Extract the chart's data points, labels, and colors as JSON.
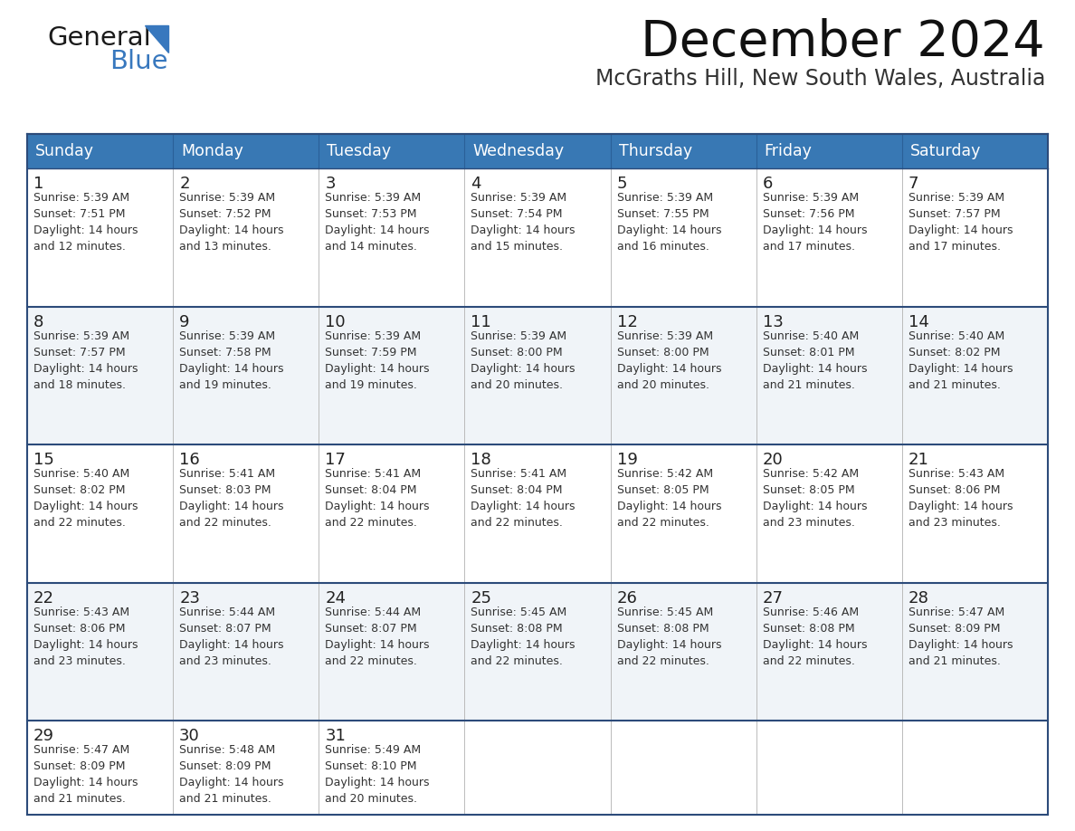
{
  "title": "December 2024",
  "subtitle": "McGraths Hill, New South Wales, Australia",
  "header_color": "#3878B4",
  "header_text_color": "#FFFFFF",
  "cell_bg_even": "#FFFFFF",
  "cell_bg_odd": "#F0F4F8",
  "border_color": "#2C4B7A",
  "row_divider_color": "#2C4B7A",
  "day_headers": [
    "Sunday",
    "Monday",
    "Tuesday",
    "Wednesday",
    "Thursday",
    "Friday",
    "Saturday"
  ],
  "calendar_data": [
    [
      {
        "day": "1",
        "info": "Sunrise: 5:39 AM\nSunset: 7:51 PM\nDaylight: 14 hours\nand 12 minutes."
      },
      {
        "day": "2",
        "info": "Sunrise: 5:39 AM\nSunset: 7:52 PM\nDaylight: 14 hours\nand 13 minutes."
      },
      {
        "day": "3",
        "info": "Sunrise: 5:39 AM\nSunset: 7:53 PM\nDaylight: 14 hours\nand 14 minutes."
      },
      {
        "day": "4",
        "info": "Sunrise: 5:39 AM\nSunset: 7:54 PM\nDaylight: 14 hours\nand 15 minutes."
      },
      {
        "day": "5",
        "info": "Sunrise: 5:39 AM\nSunset: 7:55 PM\nDaylight: 14 hours\nand 16 minutes."
      },
      {
        "day": "6",
        "info": "Sunrise: 5:39 AM\nSunset: 7:56 PM\nDaylight: 14 hours\nand 17 minutes."
      },
      {
        "day": "7",
        "info": "Sunrise: 5:39 AM\nSunset: 7:57 PM\nDaylight: 14 hours\nand 17 minutes."
      }
    ],
    [
      {
        "day": "8",
        "info": "Sunrise: 5:39 AM\nSunset: 7:57 PM\nDaylight: 14 hours\nand 18 minutes."
      },
      {
        "day": "9",
        "info": "Sunrise: 5:39 AM\nSunset: 7:58 PM\nDaylight: 14 hours\nand 19 minutes."
      },
      {
        "day": "10",
        "info": "Sunrise: 5:39 AM\nSunset: 7:59 PM\nDaylight: 14 hours\nand 19 minutes."
      },
      {
        "day": "11",
        "info": "Sunrise: 5:39 AM\nSunset: 8:00 PM\nDaylight: 14 hours\nand 20 minutes."
      },
      {
        "day": "12",
        "info": "Sunrise: 5:39 AM\nSunset: 8:00 PM\nDaylight: 14 hours\nand 20 minutes."
      },
      {
        "day": "13",
        "info": "Sunrise: 5:40 AM\nSunset: 8:01 PM\nDaylight: 14 hours\nand 21 minutes."
      },
      {
        "day": "14",
        "info": "Sunrise: 5:40 AM\nSunset: 8:02 PM\nDaylight: 14 hours\nand 21 minutes."
      }
    ],
    [
      {
        "day": "15",
        "info": "Sunrise: 5:40 AM\nSunset: 8:02 PM\nDaylight: 14 hours\nand 22 minutes."
      },
      {
        "day": "16",
        "info": "Sunrise: 5:41 AM\nSunset: 8:03 PM\nDaylight: 14 hours\nand 22 minutes."
      },
      {
        "day": "17",
        "info": "Sunrise: 5:41 AM\nSunset: 8:04 PM\nDaylight: 14 hours\nand 22 minutes."
      },
      {
        "day": "18",
        "info": "Sunrise: 5:41 AM\nSunset: 8:04 PM\nDaylight: 14 hours\nand 22 minutes."
      },
      {
        "day": "19",
        "info": "Sunrise: 5:42 AM\nSunset: 8:05 PM\nDaylight: 14 hours\nand 22 minutes."
      },
      {
        "day": "20",
        "info": "Sunrise: 5:42 AM\nSunset: 8:05 PM\nDaylight: 14 hours\nand 23 minutes."
      },
      {
        "day": "21",
        "info": "Sunrise: 5:43 AM\nSunset: 8:06 PM\nDaylight: 14 hours\nand 23 minutes."
      }
    ],
    [
      {
        "day": "22",
        "info": "Sunrise: 5:43 AM\nSunset: 8:06 PM\nDaylight: 14 hours\nand 23 minutes."
      },
      {
        "day": "23",
        "info": "Sunrise: 5:44 AM\nSunset: 8:07 PM\nDaylight: 14 hours\nand 23 minutes."
      },
      {
        "day": "24",
        "info": "Sunrise: 5:44 AM\nSunset: 8:07 PM\nDaylight: 14 hours\nand 22 minutes."
      },
      {
        "day": "25",
        "info": "Sunrise: 5:45 AM\nSunset: 8:08 PM\nDaylight: 14 hours\nand 22 minutes."
      },
      {
        "day": "26",
        "info": "Sunrise: 5:45 AM\nSunset: 8:08 PM\nDaylight: 14 hours\nand 22 minutes."
      },
      {
        "day": "27",
        "info": "Sunrise: 5:46 AM\nSunset: 8:08 PM\nDaylight: 14 hours\nand 22 minutes."
      },
      {
        "day": "28",
        "info": "Sunrise: 5:47 AM\nSunset: 8:09 PM\nDaylight: 14 hours\nand 21 minutes."
      }
    ],
    [
      {
        "day": "29",
        "info": "Sunrise: 5:47 AM\nSunset: 8:09 PM\nDaylight: 14 hours\nand 21 minutes."
      },
      {
        "day": "30",
        "info": "Sunrise: 5:48 AM\nSunset: 8:09 PM\nDaylight: 14 hours\nand 21 minutes."
      },
      {
        "day": "31",
        "info": "Sunrise: 5:49 AM\nSunset: 8:10 PM\nDaylight: 14 hours\nand 20 minutes."
      },
      {
        "day": "",
        "info": ""
      },
      {
        "day": "",
        "info": ""
      },
      {
        "day": "",
        "info": ""
      },
      {
        "day": "",
        "info": ""
      }
    ]
  ],
  "logo_text_general": "General",
  "logo_text_blue": "Blue",
  "logo_color_general": "#1a1a1a",
  "logo_color_blue": "#3878BE",
  "logo_triangle_color": "#3878BE"
}
